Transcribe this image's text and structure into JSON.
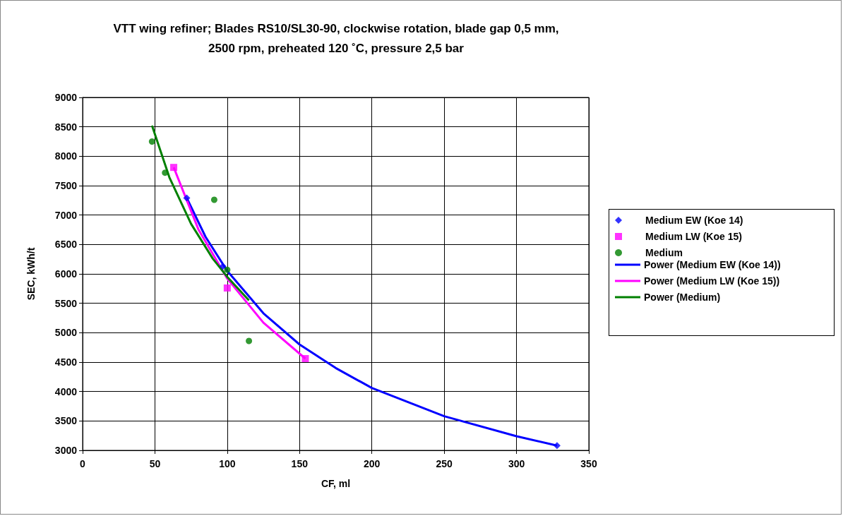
{
  "chart_data": {
    "type": "scatter",
    "title": "VTT wing refiner; Blades RS10/SL30-90, clockwise rotation, blade gap 0,5 mm,\n2500 rpm, preheated 120 ˚C, pressure 2,5 bar",
    "xlabel": "CF, ml",
    "ylabel": "SEC, kWh/t",
    "xlim": [
      0,
      350
    ],
    "xticks": [
      0,
      50,
      100,
      150,
      200,
      250,
      300,
      350
    ],
    "ylim": [
      3000,
      9000
    ],
    "yticks": [
      3000,
      3500,
      4000,
      4500,
      5000,
      5500,
      6000,
      6500,
      7000,
      7500,
      8000,
      8500,
      9000
    ],
    "grid": true,
    "legend": "right",
    "series": [
      {
        "name": "Medium EW (Koe 14)",
        "marker": "diamond",
        "color": "#0000ff",
        "x": [
          72,
          97,
          328
        ],
        "values": [
          7290,
          6130,
          3080
        ]
      },
      {
        "name": "Medium LW (Koe 15)",
        "marker": "square",
        "color": "#ff00ff",
        "x": [
          63,
          100,
          154
        ],
        "values": [
          7810,
          5760,
          4560
        ]
      },
      {
        "name": "Medium",
        "marker": "circle",
        "color": "#008000",
        "x": [
          48,
          57,
          91,
          100,
          115
        ],
        "values": [
          8250,
          7720,
          7260,
          6070,
          4860
        ]
      },
      {
        "name": "Power (Medium EW (Koe 14))",
        "type": "line",
        "marker": "none",
        "color": "#0000ff",
        "x": [
          72,
          85,
          100,
          125,
          150,
          175,
          200,
          250,
          300,
          328
        ],
        "values": [
          7290,
          6630,
          6050,
          5330,
          4800,
          4400,
          4060,
          3580,
          3240,
          3080
        ]
      },
      {
        "name": "Power (Medium LW (Koe 15))",
        "type": "line",
        "marker": "none",
        "color": "#ff00ff",
        "x": [
          63,
          80,
          100,
          125,
          154
        ],
        "values": [
          7810,
          6760,
          5920,
          5170,
          4560
        ]
      },
      {
        "name": "Power (Medium)",
        "type": "line",
        "marker": "none",
        "color": "#008000",
        "x": [
          48,
          60,
          75,
          90,
          100,
          115
        ],
        "values": [
          8520,
          7640,
          6850,
          6260,
          5950,
          5550
        ]
      }
    ]
  }
}
